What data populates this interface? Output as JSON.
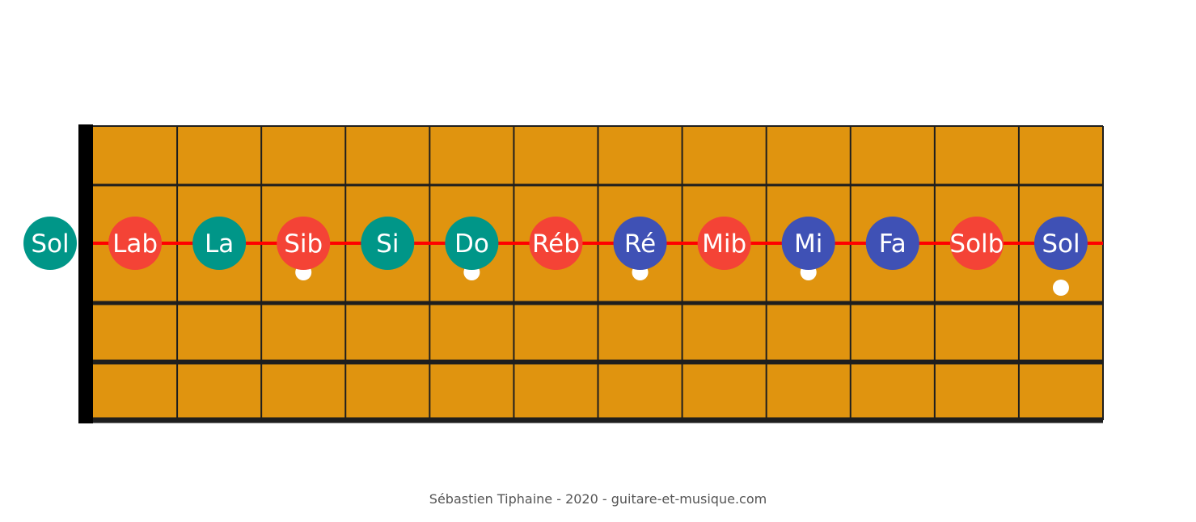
{
  "diagram": {
    "colors": {
      "board": "#e0940f",
      "grid": "#1e1e1e",
      "nut": "#000000",
      "string_highlight": "#ff0000",
      "inlay_dot": "#ffffff",
      "role_colors": {
        "green": "#009688",
        "red": "#f44336",
        "blue": "#3f51b5"
      }
    },
    "open_note": {
      "label": "Sol",
      "color": "green"
    },
    "notes": [
      {
        "fret": 1,
        "label": "Lab",
        "color": "red"
      },
      {
        "fret": 2,
        "label": "La",
        "color": "green"
      },
      {
        "fret": 3,
        "label": "Sib",
        "color": "red"
      },
      {
        "fret": 4,
        "label": "Si",
        "color": "green"
      },
      {
        "fret": 5,
        "label": "Do",
        "color": "green"
      },
      {
        "fret": 6,
        "label": "Réb",
        "color": "red"
      },
      {
        "fret": 7,
        "label": "Ré",
        "color": "blue"
      },
      {
        "fret": 8,
        "label": "Mib",
        "color": "red"
      },
      {
        "fret": 9,
        "label": "Mi",
        "color": "blue"
      },
      {
        "fret": 10,
        "label": "Fa",
        "color": "blue"
      },
      {
        "fret": 11,
        "label": "Solb",
        "color": "red"
      },
      {
        "fret": 12,
        "label": "Sol",
        "color": "blue"
      }
    ],
    "fret_count": 12,
    "inlay_frets": [
      3,
      5,
      7,
      9,
      12
    ],
    "credit": "Sébastien Tiphaine - 2020 - guitare-et-musique.com"
  }
}
